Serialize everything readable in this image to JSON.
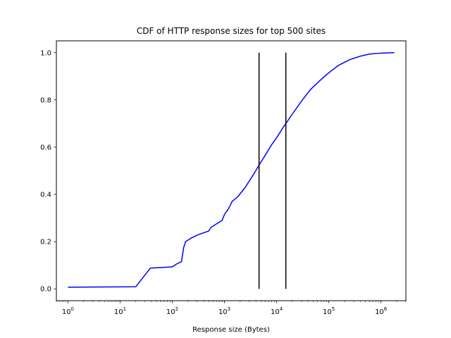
{
  "chart_data": {
    "type": "line",
    "title": "CDF of HTTP response sizes for top 500 sites",
    "xlabel": "Response size (Bytes)",
    "ylabel": "",
    "x_scale": "log",
    "xlim": [
      0.6,
      3000000
    ],
    "ylim": [
      -0.05,
      1.05
    ],
    "grid": false,
    "x_ticks": [
      {
        "value": 1,
        "base": "10",
        "exp": "0"
      },
      {
        "value": 10,
        "base": "10",
        "exp": "1"
      },
      {
        "value": 100,
        "base": "10",
        "exp": "2"
      },
      {
        "value": 1000,
        "base": "10",
        "exp": "3"
      },
      {
        "value": 10000,
        "base": "10",
        "exp": "4"
      },
      {
        "value": 100000,
        "base": "10",
        "exp": "5"
      },
      {
        "value": 1000000,
        "base": "10",
        "exp": "6"
      }
    ],
    "y_ticks": [
      {
        "value": 0.0,
        "label": "0.0"
      },
      {
        "value": 0.2,
        "label": "0.2"
      },
      {
        "value": 0.4,
        "label": "0.4"
      },
      {
        "value": 0.6,
        "label": "0.6"
      },
      {
        "value": 0.8,
        "label": "0.8"
      },
      {
        "value": 1.0,
        "label": "1.0"
      }
    ],
    "series": [
      {
        "color": "#0000ff",
        "x": [
          1,
          20,
          38,
          100,
          120,
          150,
          165,
          180,
          230,
          320,
          500,
          550,
          700,
          900,
          1000,
          1200,
          1400,
          1800,
          2500,
          3500,
          4500,
          6000,
          8000,
          10000,
          13000,
          15000,
          20000,
          30000,
          45000,
          70000,
          100000,
          150000,
          250000,
          400000,
          600000,
          1000000,
          1800000
        ],
        "y": [
          0.007,
          0.009,
          0.088,
          0.093,
          0.105,
          0.115,
          0.175,
          0.2,
          0.215,
          0.23,
          0.245,
          0.26,
          0.275,
          0.29,
          0.315,
          0.34,
          0.37,
          0.39,
          0.43,
          0.48,
          0.52,
          0.565,
          0.61,
          0.64,
          0.68,
          0.7,
          0.74,
          0.795,
          0.845,
          0.885,
          0.915,
          0.945,
          0.97,
          0.985,
          0.994,
          0.998,
          1.0
        ]
      }
    ],
    "vlines": [
      {
        "x": 4600,
        "ymin": 0,
        "ymax": 1,
        "color": "#000000"
      },
      {
        "x": 15000,
        "ymin": 0,
        "ymax": 1,
        "color": "#000000"
      }
    ]
  }
}
